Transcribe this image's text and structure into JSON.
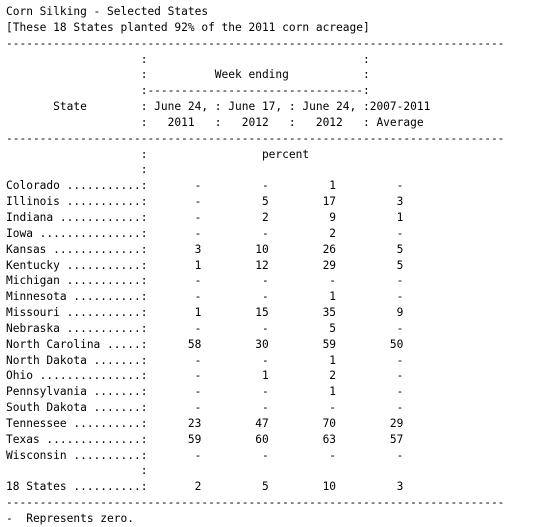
{
  "title": "Corn Silking - Selected States",
  "subtitle": "[These 18 States planted 92% of the 2011 corn acreage]",
  "header": {
    "group_label": "Week ending",
    "state_label": "State",
    "columns": [
      {
        "line1": "June 24,",
        "line2": "2011"
      },
      {
        "line1": "June 17,",
        "line2": "2012"
      },
      {
        "line1": "June 24,",
        "line2": "2012"
      },
      {
        "line1": "2007-2011",
        "line2": "Average"
      }
    ],
    "unit_label": "percent"
  },
  "rows": [
    {
      "state": "Colorado",
      "values": [
        "-",
        "-",
        "1",
        "-"
      ]
    },
    {
      "state": "Illinois",
      "values": [
        "-",
        "5",
        "17",
        "3"
      ]
    },
    {
      "state": "Indiana",
      "values": [
        "-",
        "2",
        "9",
        "1"
      ]
    },
    {
      "state": "Iowa",
      "values": [
        "-",
        "-",
        "2",
        "-"
      ]
    },
    {
      "state": "Kansas",
      "values": [
        "3",
        "10",
        "26",
        "5"
      ]
    },
    {
      "state": "Kentucky",
      "values": [
        "1",
        "12",
        "29",
        "5"
      ]
    },
    {
      "state": "Michigan",
      "values": [
        "-",
        "-",
        "-",
        "-"
      ]
    },
    {
      "state": "Minnesota",
      "values": [
        "-",
        "-",
        "1",
        "-"
      ]
    },
    {
      "state": "Missouri",
      "values": [
        "1",
        "15",
        "35",
        "9"
      ]
    },
    {
      "state": "Nebraska",
      "values": [
        "-",
        "-",
        "5",
        "-"
      ]
    },
    {
      "state": "North Carolina",
      "values": [
        "58",
        "30",
        "59",
        "50"
      ]
    },
    {
      "state": "North Dakota",
      "values": [
        "-",
        "-",
        "1",
        "-"
      ]
    },
    {
      "state": "Ohio",
      "values": [
        "-",
        "1",
        "2",
        "-"
      ]
    },
    {
      "state": "Pennsylvania",
      "values": [
        "-",
        "-",
        "1",
        "-"
      ]
    },
    {
      "state": "South Dakota",
      "values": [
        "-",
        "-",
        "-",
        "-"
      ]
    },
    {
      "state": "Tennessee",
      "values": [
        "23",
        "47",
        "70",
        "29"
      ]
    },
    {
      "state": "Texas",
      "values": [
        "59",
        "60",
        "63",
        "57"
      ]
    },
    {
      "state": "Wisconsin",
      "values": [
        "-",
        "-",
        "-",
        "-"
      ]
    }
  ],
  "total": {
    "state": "18 States",
    "values": [
      "2",
      "5",
      "10",
      "3"
    ]
  },
  "footnote": "-  Represents zero."
}
